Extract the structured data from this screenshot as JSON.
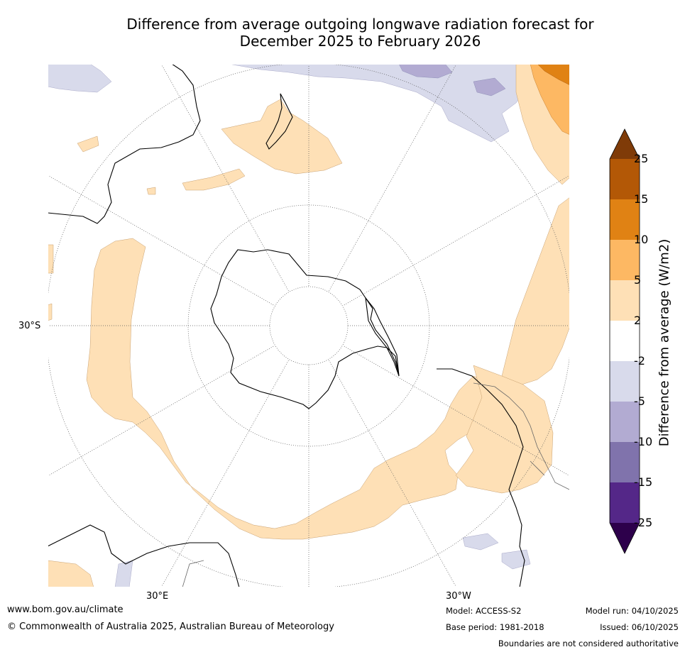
{
  "title_line1": "Difference from average outgoing longwave radiation forecast for",
  "title_line2": "December 2025 to February 2026",
  "labels": {
    "lon_30e": "30°E",
    "lon_30w": "30°W",
    "lat_30s": "30°S"
  },
  "colorbar": {
    "title": "Difference from average (W/m2)",
    "ticks": [
      "25",
      "15",
      "10",
      "5",
      "2",
      "-2",
      "-5",
      "-10",
      "-15",
      "-25"
    ],
    "colors": {
      "over": "#7f3b08",
      "c15_25": "#b35806",
      "c10_15": "#e08214",
      "c5_10": "#fdb863",
      "c2_5": "#fee0b6",
      "neutral": "#ffffff",
      "cm2_m5": "#d8daeb",
      "cm5_m10": "#b2abd2",
      "cm10_m15": "#8073ac",
      "cm15_m25": "#542788",
      "under": "#2d004b"
    }
  },
  "footer": {
    "url": "www.bom.gov.au/climate",
    "copyright": "© Commonwealth of Australia 2025, Australian Bureau of Meteorology",
    "model": "Model: ACCESS-S2",
    "base_period": "Base period: 1981-2018",
    "model_run": "Model run: 04/10/2025",
    "issued": "Issued: 06/10/2025",
    "disclaimer": "Boundaries are not considered authoritative"
  }
}
